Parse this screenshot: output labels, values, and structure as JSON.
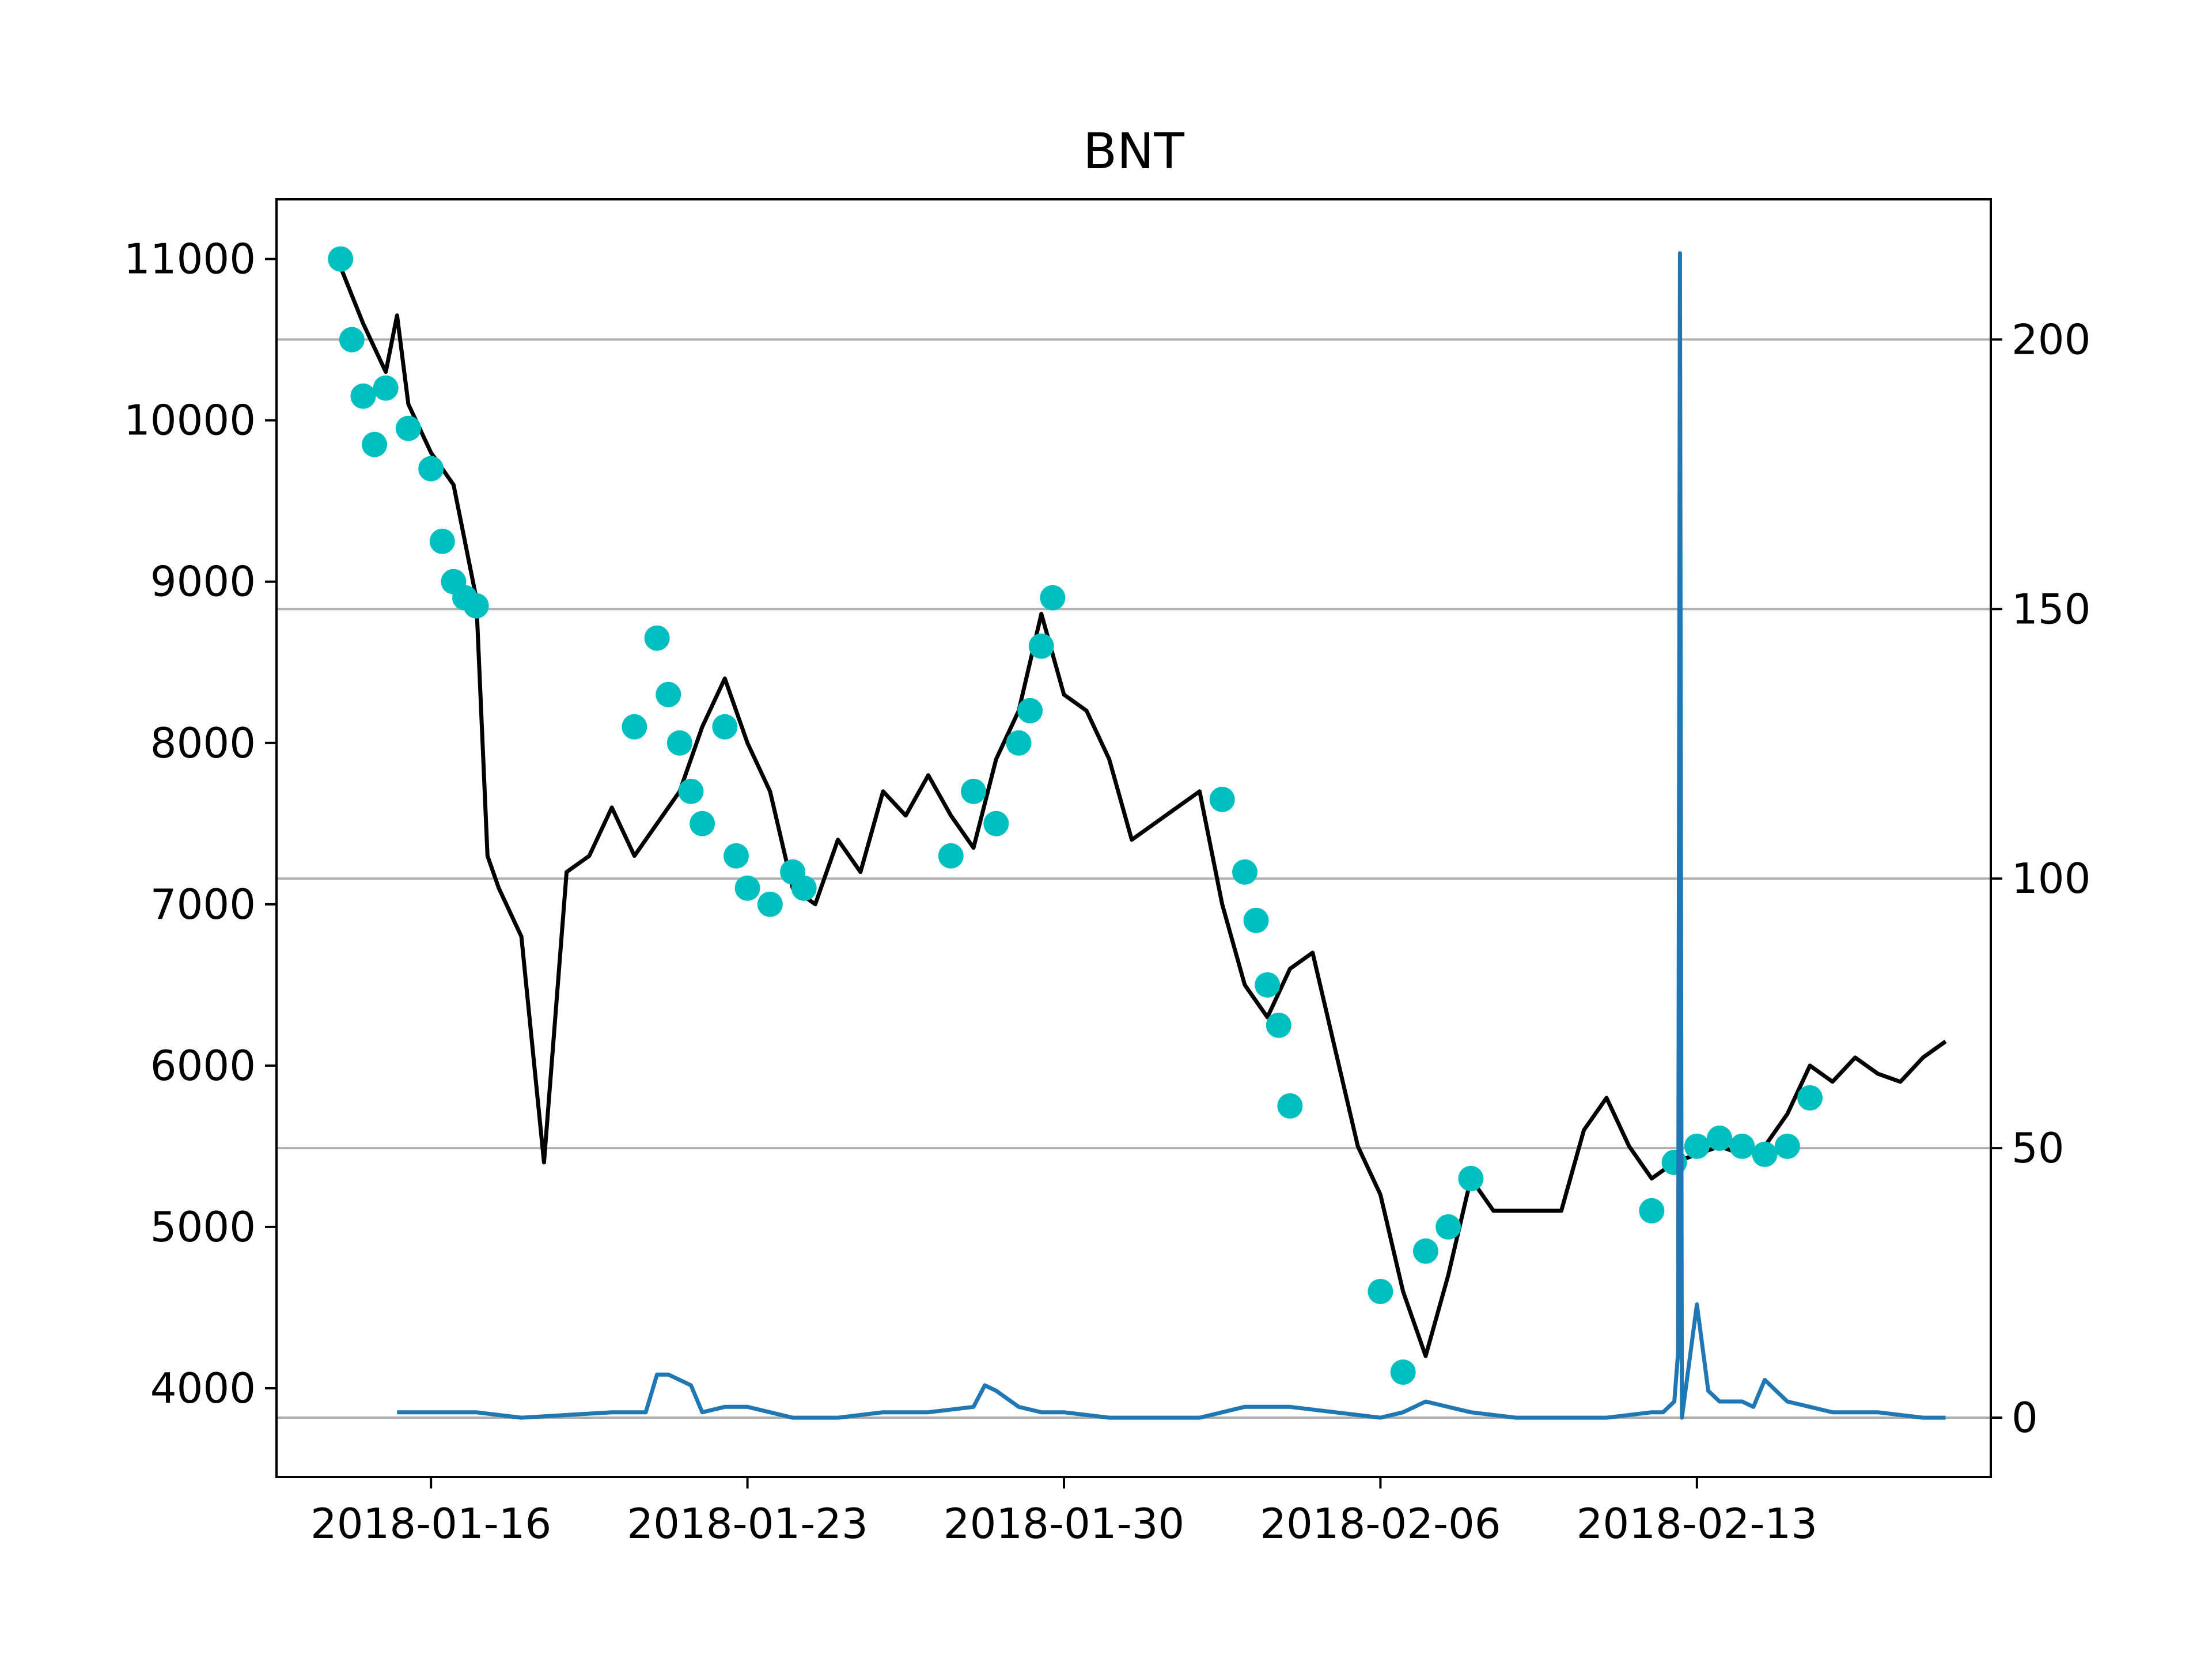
{
  "chart_data": {
    "type": "line",
    "title": "BNT",
    "xlabel": "",
    "ylabel": "",
    "ylabel_right": "",
    "grid": "horizontal lines at right-axis ticks",
    "x_ticks": [
      "2018-01-16",
      "2018-01-23",
      "2018-01-30",
      "2018-02-06",
      "2018-02-13"
    ],
    "y_ticks_left": [
      4000,
      5000,
      6000,
      7000,
      8000,
      9000,
      10000,
      11000
    ],
    "y_ticks_right": [
      0,
      50,
      100,
      150,
      200
    ],
    "ylim_left": [
      3450,
      11370
    ],
    "ylim_right": [
      -11,
      226
    ],
    "xlim": [
      "2018-01-12T14:00",
      "2018-02-19T12:00"
    ],
    "colors": {
      "price": "#000000",
      "markers": "#00bfbf",
      "volume": "#1f77b4",
      "grid": "#b0b0b0"
    },
    "series": [
      {
        "axis": "left",
        "style": "black line",
        "x": [
          "2018-01-14T00:00",
          "2018-01-14T12:00",
          "2018-01-15T00:00",
          "2018-01-15T06:00",
          "2018-01-15T12:00",
          "2018-01-16T00:00",
          "2018-01-16T12:00",
          "2018-01-17T00:00",
          "2018-01-17T06:00",
          "2018-01-17T12:00",
          "2018-01-18T00:00",
          "2018-01-18T12:00",
          "2018-01-19T00:00",
          "2018-01-19T12:00",
          "2018-01-20T00:00",
          "2018-01-20T12:00",
          "2018-01-21T00:00",
          "2018-01-21T12:00",
          "2018-01-22T00:00",
          "2018-01-22T12:00",
          "2018-01-23T00:00",
          "2018-01-23T12:00",
          "2018-01-24T00:00",
          "2018-01-24T12:00",
          "2018-01-25T00:00",
          "2018-01-25T12:00",
          "2018-01-26T00:00",
          "2018-01-26T12:00",
          "2018-01-27T00:00",
          "2018-01-27T12:00",
          "2018-01-28T00:00",
          "2018-01-28T12:00",
          "2018-01-29T00:00",
          "2018-01-29T12:00",
          "2018-01-30T00:00",
          "2018-01-30T12:00",
          "2018-01-31T00:00",
          "2018-01-31T12:00",
          "2018-02-01T00:00",
          "2018-02-01T12:00",
          "2018-02-02T00:00",
          "2018-02-02T12:00",
          "2018-02-03T00:00",
          "2018-02-03T12:00",
          "2018-02-04T00:00",
          "2018-02-04T12:00",
          "2018-02-05T00:00",
          "2018-02-05T12:00",
          "2018-02-06T00:00",
          "2018-02-06T12:00",
          "2018-02-07T00:00",
          "2018-02-07T12:00",
          "2018-02-08T00:00",
          "2018-02-08T12:00",
          "2018-02-09T00:00",
          "2018-02-09T12:00",
          "2018-02-10T00:00",
          "2018-02-10T12:00",
          "2018-02-11T00:00",
          "2018-02-11T12:00",
          "2018-02-12T00:00",
          "2018-02-12T12:00",
          "2018-02-13T00:00",
          "2018-02-13T12:00",
          "2018-02-14T00:00",
          "2018-02-14T12:00",
          "2018-02-15T00:00",
          "2018-02-15T12:00",
          "2018-02-16T00:00",
          "2018-02-16T12:00",
          "2018-02-17T00:00",
          "2018-02-17T12:00",
          "2018-02-18T00:00",
          "2018-02-18T12:00"
        ],
        "values": [
          10950,
          10600,
          10300,
          10650,
          10100,
          9800,
          9600,
          8900,
          7300,
          7100,
          6800,
          5400,
          7200,
          7300,
          7600,
          7300,
          7500,
          7700,
          8100,
          8400,
          8000,
          7700,
          7100,
          7000,
          7400,
          7200,
          7700,
          7550,
          7800,
          7550,
          7350,
          7900,
          8200,
          8800,
          8300,
          8200,
          7900,
          7400,
          7500,
          7600,
          7700,
          7000,
          6500,
          6300,
          6600,
          6700,
          6100,
          5500,
          5200,
          4600,
          4200,
          4700,
          5300,
          5100,
          5100,
          5100,
          5100,
          5600,
          5800,
          5500,
          5300,
          5400,
          5450,
          5500,
          5450,
          5500,
          5700,
          6000,
          5900,
          6050,
          5950,
          5900,
          6050,
          6150
        ]
      },
      {
        "axis": "left",
        "style": "cyan markers",
        "x": [
          "2018-01-14T00:00",
          "2018-01-14T06:00",
          "2018-01-14T12:00",
          "2018-01-14T18:00",
          "2018-01-15T00:00",
          "2018-01-15T12:00",
          "2018-01-16T00:00",
          "2018-01-16T06:00",
          "2018-01-16T12:00",
          "2018-01-16T18:00",
          "2018-01-17T00:00",
          "2018-01-20T12:00",
          "2018-01-21T00:00",
          "2018-01-21T06:00",
          "2018-01-21T12:00",
          "2018-01-21T18:00",
          "2018-01-22T00:00",
          "2018-01-22T12:00",
          "2018-01-22T18:00",
          "2018-01-23T00:00",
          "2018-01-23T12:00",
          "2018-01-24T00:00",
          "2018-01-24T06:00",
          "2018-01-27T12:00",
          "2018-01-28T00:00",
          "2018-01-28T12:00",
          "2018-01-29T00:00",
          "2018-01-29T06:00",
          "2018-01-29T12:00",
          "2018-01-29T18:00",
          "2018-02-02T12:00",
          "2018-02-03T00:00",
          "2018-02-03T06:00",
          "2018-02-03T12:00",
          "2018-02-03T18:00",
          "2018-02-04T00:00",
          "2018-02-06T00:00",
          "2018-02-06T12:00",
          "2018-02-07T00:00",
          "2018-02-07T12:00",
          "2018-02-08T00:00",
          "2018-02-12T00:00",
          "2018-02-12T12:00",
          "2018-02-13T00:00",
          "2018-02-13T12:00",
          "2018-02-14T00:00",
          "2018-02-14T12:00",
          "2018-02-15T00:00",
          "2018-02-15T12:00"
        ],
        "values": [
          11000,
          10500,
          10150,
          9850,
          10200,
          9950,
          9700,
          9250,
          9000,
          8900,
          8850,
          8100,
          8650,
          8300,
          8000,
          7700,
          7500,
          8100,
          7300,
          7100,
          7000,
          7200,
          7100,
          7300,
          7700,
          7500,
          8000,
          8200,
          8600,
          8900,
          7650,
          7200,
          6900,
          6500,
          6250,
          5750,
          4600,
          4100,
          4850,
          5000,
          5300,
          5100,
          5400,
          5500,
          5550,
          5500,
          5450,
          5500,
          5800
        ]
      },
      {
        "axis": "right",
        "style": "blue line",
        "x": [
          "2018-01-15T06:00",
          "2018-01-17T00:00",
          "2018-01-18T00:00",
          "2018-01-20T00:00",
          "2018-01-20T18:00",
          "2018-01-21T00:00",
          "2018-01-21T06:00",
          "2018-01-21T12:00",
          "2018-01-21T18:00",
          "2018-01-22T00:00",
          "2018-01-22T12:00",
          "2018-01-23T00:00",
          "2018-01-23T12:00",
          "2018-01-24T00:00",
          "2018-01-25T00:00",
          "2018-01-26T00:00",
          "2018-01-27T00:00",
          "2018-01-28T00:00",
          "2018-01-28T06:00",
          "2018-01-28T12:00",
          "2018-01-29T00:00",
          "2018-01-29T12:00",
          "2018-01-30T00:00",
          "2018-01-31T00:00",
          "2018-02-01T00:00",
          "2018-02-02T00:00",
          "2018-02-03T00:00",
          "2018-02-04T00:00",
          "2018-02-05T00:00",
          "2018-02-06T00:00",
          "2018-02-06T12:00",
          "2018-02-07T00:00",
          "2018-02-08T00:00",
          "2018-02-09T00:00",
          "2018-02-10T00:00",
          "2018-02-11T00:00",
          "2018-02-12T00:00",
          "2018-02-12T06:00",
          "2018-02-12T12:00",
          "2018-02-12T14:00",
          "2018-02-12T15:00",
          "2018-02-12T16:00",
          "2018-02-13T00:00",
          "2018-02-13T06:00",
          "2018-02-13T12:00",
          "2018-02-14T00:00",
          "2018-02-14T06:00",
          "2018-02-14T12:00",
          "2018-02-15T00:00",
          "2018-02-15T12:00",
          "2018-02-16T00:00",
          "2018-02-17T00:00",
          "2018-02-18T00:00",
          "2018-02-18T12:00"
        ],
        "values": [
          1,
          1,
          0,
          1,
          1,
          8,
          8,
          7,
          6,
          1,
          2,
          2,
          1,
          0,
          0,
          1,
          1,
          2,
          6,
          5,
          2,
          1,
          1,
          0,
          0,
          0,
          2,
          2,
          1,
          0,
          1,
          3,
          1,
          0,
          0,
          0,
          1,
          1,
          3,
          12,
          216,
          0,
          21,
          5,
          3,
          3,
          2,
          7,
          3,
          2,
          1,
          1,
          0,
          0
        ]
      }
    ]
  }
}
